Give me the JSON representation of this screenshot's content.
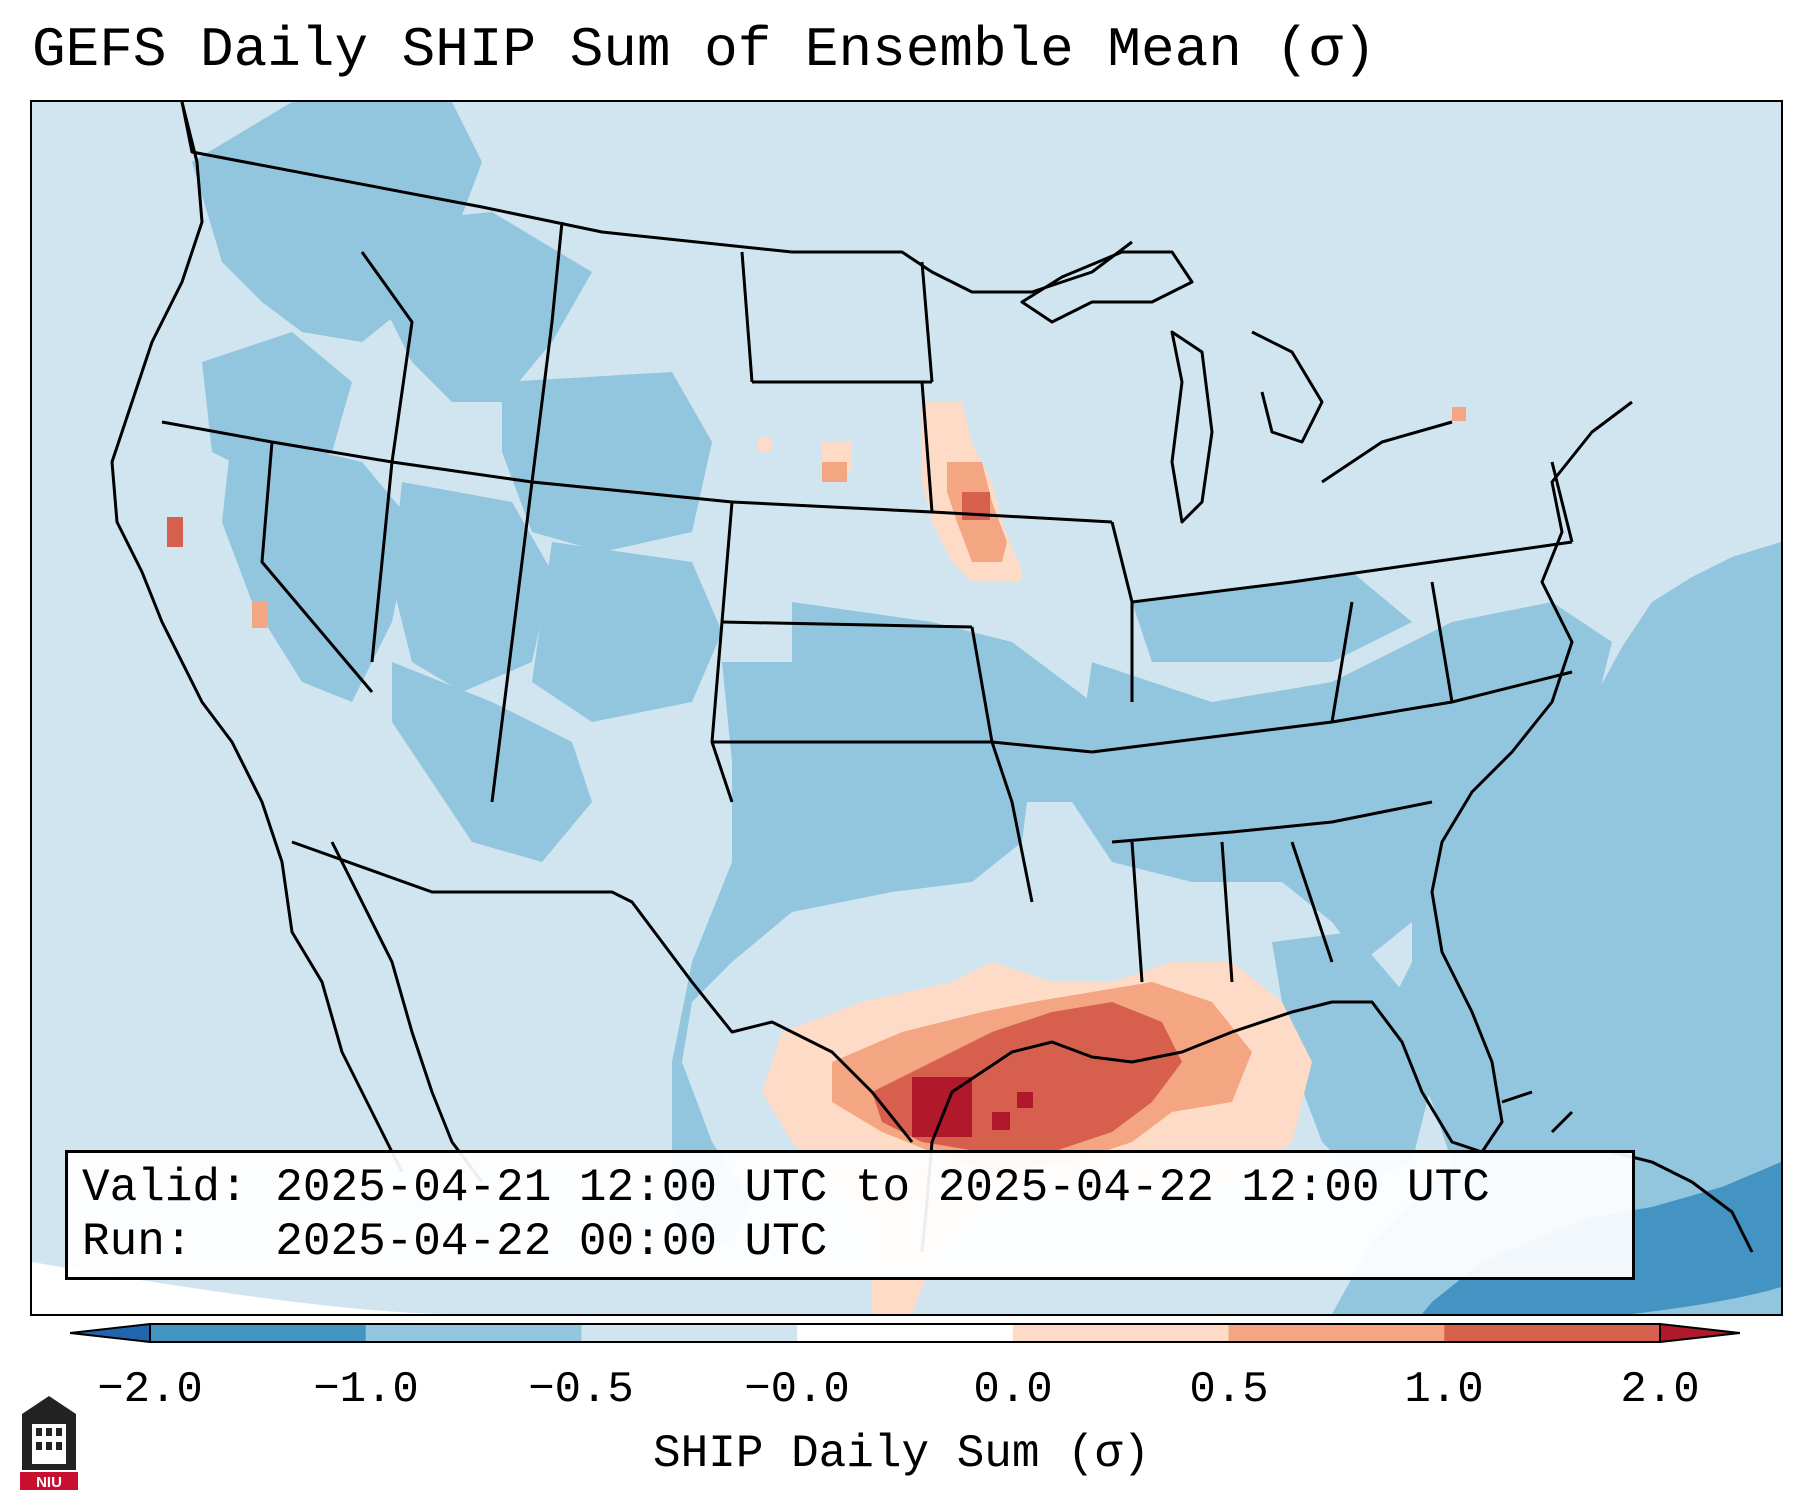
{
  "title": "GEFS Daily SHIP Sum of Ensemble Mean (σ)",
  "info": {
    "valid_label": "Valid:",
    "valid_value": "2025-04-21 12:00 UTC to 2025-04-22 12:00 UTC",
    "run_label": "Run:  ",
    "run_value": "2025-04-22 00:00 UTC"
  },
  "colorbar": {
    "label": "SHIP Daily Sum (σ)",
    "ticks": [
      "−2.0",
      "−1.0",
      "−0.5",
      "−0.0",
      "0.0",
      "0.5",
      "1.0",
      "2.0"
    ],
    "colors": [
      "#4393c3",
      "#92c5de",
      "#d1e5f0",
      "#ffffff",
      "#fddbc7",
      "#f4a582",
      "#d6604d"
    ],
    "under_color": "#2166ac",
    "over_color": "#b2182b"
  },
  "field_colors": {
    "below_minus_1": "#4393c3",
    "minus_1_to_minus_half": "#92c5de",
    "minus_half_to_zero": "#d1e5f0",
    "zero_to_half": "#fddbc7",
    "half_to_one": "#f4a582",
    "one_to_two": "#d6604d",
    "above_two": "#b2182b"
  },
  "logo": {
    "text": "NIU"
  }
}
